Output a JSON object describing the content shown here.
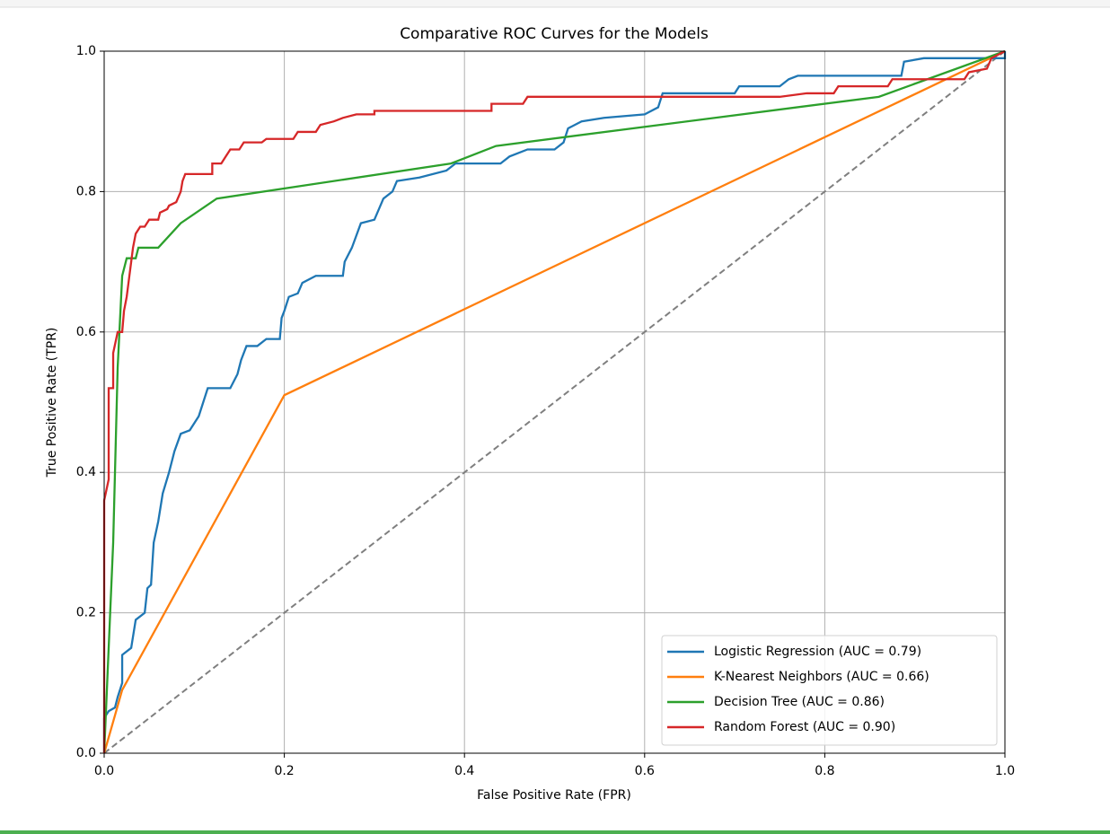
{
  "chart_data": {
    "type": "line",
    "title": "Comparative ROC Curves for the Models",
    "x_label": "False Positive Rate (FPR)",
    "y_label": "True Positive Rate (TPR)",
    "xlim": [
      0,
      1
    ],
    "ylim": [
      0,
      1
    ],
    "xticks": [
      {
        "value": 0,
        "label": "0.0"
      },
      0.2,
      0.4,
      0.6,
      0.8,
      {
        "value": 1,
        "label": "1.0"
      }
    ],
    "yticks": [
      {
        "value": 0,
        "label": "0.0"
      },
      0.2,
      0.4,
      0.6,
      0.8,
      {
        "value": 1,
        "label": "1.0"
      }
    ],
    "grid": true,
    "legend": "lower right",
    "diagonal": {
      "x": [
        0,
        1
      ],
      "values": [
        0,
        1
      ],
      "color": "#7f7f7f",
      "dashed": true
    },
    "series": [
      {
        "name": "Logistic Regression (AUC = 0.79)",
        "color": "#1f77b4",
        "x": [
          0,
          0,
          0.005,
          0.012,
          0.015,
          0.02,
          0.02,
          0.03,
          0.035,
          0.045,
          0.048,
          0.052,
          0.055,
          0.06,
          0.065,
          0.072,
          0.078,
          0.085,
          0.095,
          0.105,
          0.11,
          0.115,
          0.14,
          0.148,
          0.152,
          0.158,
          0.17,
          0.18,
          0.195,
          0.197,
          0.2,
          0.205,
          0.215,
          0.22,
          0.235,
          0.265,
          0.267,
          0.275,
          0.285,
          0.3,
          0.31,
          0.32,
          0.325,
          0.35,
          0.38,
          0.39,
          0.44,
          0.45,
          0.47,
          0.5,
          0.51,
          0.515,
          0.53,
          0.555,
          0.6,
          0.615,
          0.62,
          0.7,
          0.705,
          0.75,
          0.76,
          0.77,
          0.885,
          0.888,
          0.91,
          1,
          1
        ],
        "values": [
          0,
          0.05,
          0.06,
          0.065,
          0.08,
          0.1,
          0.14,
          0.15,
          0.19,
          0.2,
          0.235,
          0.24,
          0.3,
          0.33,
          0.37,
          0.4,
          0.43,
          0.455,
          0.46,
          0.48,
          0.5,
          0.52,
          0.52,
          0.54,
          0.56,
          0.58,
          0.58,
          0.59,
          0.59,
          0.62,
          0.63,
          0.65,
          0.655,
          0.67,
          0.68,
          0.68,
          0.7,
          0.72,
          0.755,
          0.76,
          0.79,
          0.8,
          0.815,
          0.82,
          0.83,
          0.84,
          0.84,
          0.85,
          0.86,
          0.86,
          0.87,
          0.89,
          0.9,
          0.905,
          0.91,
          0.92,
          0.94,
          0.94,
          0.95,
          0.95,
          0.96,
          0.965,
          0.965,
          0.985,
          0.99,
          0.99,
          1
        ]
      },
      {
        "name": "K-Nearest Neighbors (AUC = 0.66)",
        "color": "#ff7f0e",
        "x": [
          0,
          0.02,
          0.2,
          1
        ],
        "values": [
          0,
          0.09,
          0.51,
          1
        ]
      },
      {
        "name": "Decision Tree (AUC = 0.86)",
        "color": "#2ca02c",
        "x": [
          0,
          0.01,
          0.015,
          0.02,
          0.025,
          0.035,
          0.038,
          0.06,
          0.085,
          0.125,
          0.385,
          0.435,
          0.86,
          1
        ],
        "values": [
          0,
          0.3,
          0.55,
          0.68,
          0.705,
          0.705,
          0.72,
          0.72,
          0.755,
          0.79,
          0.84,
          0.865,
          0.935,
          1
        ]
      },
      {
        "name": "Random Forest (AUC = 0.90)",
        "color": "#d62728",
        "x": [
          0,
          0,
          0.005,
          0.005,
          0.01,
          0.01,
          0.015,
          0.02,
          0.022,
          0.025,
          0.028,
          0.03,
          0.032,
          0.035,
          0.04,
          0.045,
          0.05,
          0.06,
          0.062,
          0.07,
          0.072,
          0.08,
          0.085,
          0.087,
          0.09,
          0.12,
          0.12,
          0.13,
          0.135,
          0.14,
          0.15,
          0.155,
          0.175,
          0.18,
          0.21,
          0.215,
          0.235,
          0.24,
          0.255,
          0.265,
          0.28,
          0.3,
          0.3,
          0.43,
          0.43,
          0.465,
          0.47,
          0.75,
          0.78,
          0.81,
          0.815,
          0.87,
          0.875,
          0.955,
          0.96,
          0.98,
          0.985,
          1
        ],
        "values": [
          0,
          0.36,
          0.39,
          0.52,
          0.52,
          0.57,
          0.6,
          0.6,
          0.63,
          0.65,
          0.68,
          0.7,
          0.72,
          0.74,
          0.75,
          0.75,
          0.76,
          0.76,
          0.77,
          0.775,
          0.78,
          0.785,
          0.8,
          0.815,
          0.825,
          0.825,
          0.84,
          0.84,
          0.85,
          0.86,
          0.86,
          0.87,
          0.87,
          0.875,
          0.875,
          0.885,
          0.885,
          0.895,
          0.9,
          0.905,
          0.91,
          0.91,
          0.915,
          0.915,
          0.925,
          0.925,
          0.935,
          0.935,
          0.94,
          0.94,
          0.95,
          0.95,
          0.96,
          0.96,
          0.97,
          0.975,
          0.99,
          1
        ]
      }
    ]
  }
}
